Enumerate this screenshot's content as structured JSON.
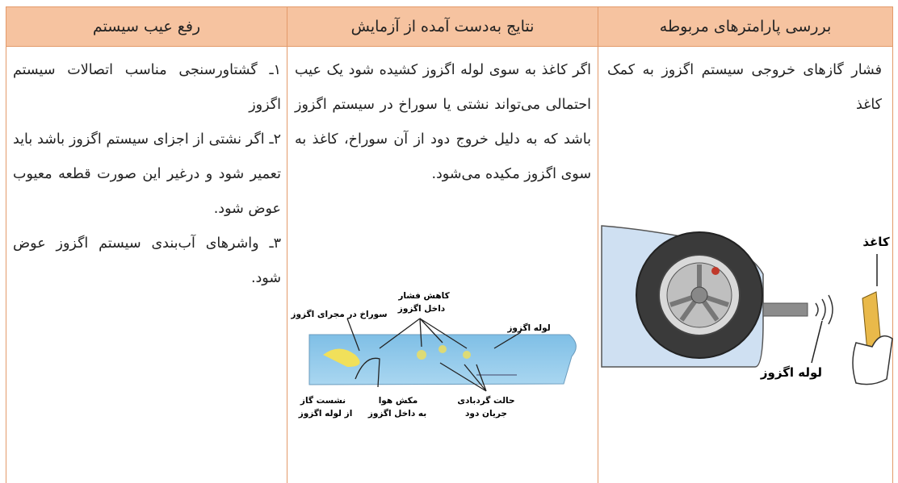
{
  "table": {
    "headers": [
      "بررسی پارامترهای مربوطه",
      "نتایج به‌دست آمده از آزمایش",
      "رفع عیب سیستم"
    ],
    "rows": [
      [
        "فشار گازهای خروجی سیستم اگزوز به کمک کاغذ",
        "اگر کاغذ به سوی لوله اگزوز کشیده شود یک عیب احتمالی می‌تواند نشتی یا سوراخ در سیستم اگزوز باشد که به دلیل خروج دود از آن سوراخ، کاغذ به سوی اگزوز مکیده می‌شود.",
        [
          "۱ـ گشتاورسنجی مناسب اتصالات سیستم اگزوز",
          "۲ـ اگر نشتی از اجزای سیستم اگزوز باشد باید تعمیر شود و درغیر این صورت قطعه معیوب عوض شود.",
          "۳ـ واشرهای آب‌بندی سیستم اگزوز عوض شود."
        ]
      ]
    ]
  },
  "figures": {
    "car": {
      "labels": [
        "کاغذ",
        "لوله اگزوز"
      ]
    },
    "pipe": {
      "labels": [
        [
          "کاهش فشار",
          "داخل اگزوز"
        ],
        [
          "سوراخ در مجرای اگزوز"
        ],
        [
          "لوله اگزوز"
        ],
        [
          "نشست گاز",
          "از لوله اگزوز"
        ],
        [
          "مکش هوا",
          "به داخل اگزوز"
        ],
        [
          "حالت گردبادی",
          "جریان دود"
        ]
      ]
    }
  }
}
